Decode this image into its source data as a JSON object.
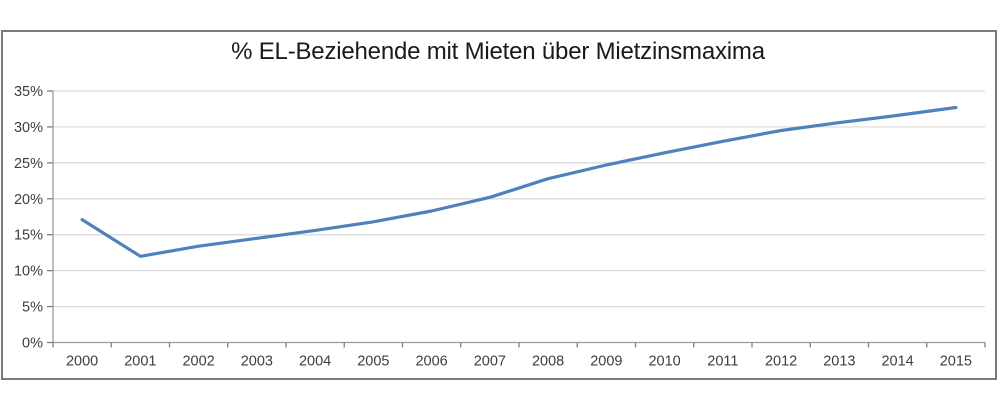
{
  "chart_data": {
    "type": "line",
    "title": "% EL-Beziehende mit Mieten über Mietzinsmaxima",
    "x": [
      "2000",
      "2001",
      "2002",
      "2003",
      "2004",
      "2005",
      "2006",
      "2007",
      "2008",
      "2009",
      "2010",
      "2011",
      "2012",
      "2013",
      "2014",
      "2015"
    ],
    "values": [
      17.1,
      12.0,
      13.4,
      14.5,
      15.6,
      16.8,
      18.3,
      20.2,
      22.8,
      24.7,
      26.4,
      28.0,
      29.5,
      30.6,
      31.6,
      32.7
    ],
    "ylim": [
      0,
      35
    ],
    "ytick_step": 5,
    "ytick_labels": [
      "0%",
      "5%",
      "10%",
      "15%",
      "20%",
      "25%",
      "30%",
      "35%"
    ],
    "grid": true,
    "legend": "none",
    "colors": {
      "line": "#4F81BD",
      "grid": "#D9D9D9",
      "axis": "#9a9a9a",
      "tick": "#808080",
      "frame": "#7a7a7a",
      "tick_text": "#3f3f3f",
      "title_text": "#1a1a1a"
    }
  }
}
